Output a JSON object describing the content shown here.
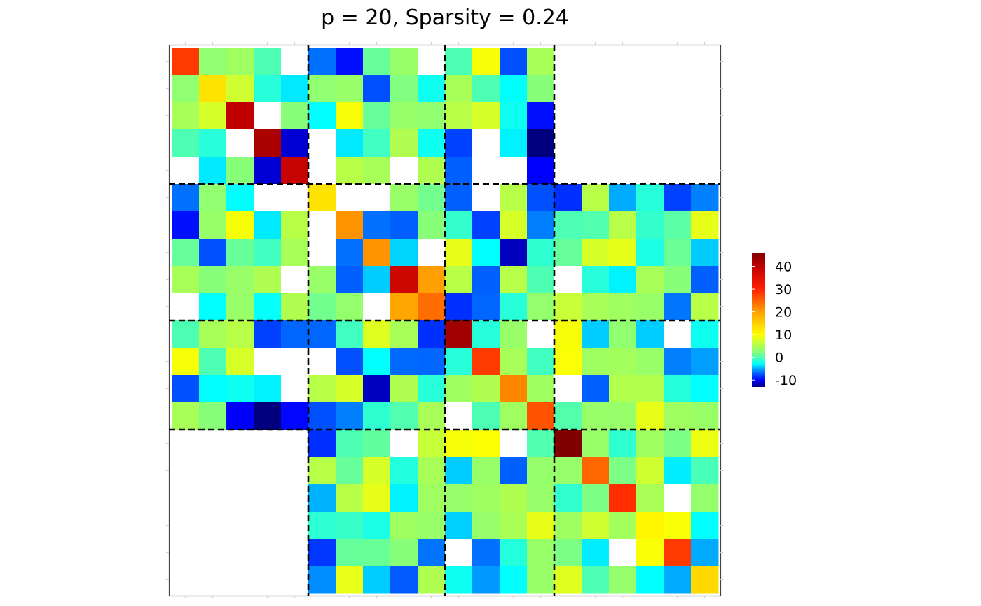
{
  "chart_data": {
    "type": "heatmap",
    "title": "p = 20, Sparsity = 0.24",
    "xlabel": "",
    "ylabel": "",
    "n_rows": 20,
    "n_cols": 20,
    "block_sizes": [
      5,
      5,
      4,
      6
    ],
    "zero_color": "#ffffff",
    "color_range": [
      -13,
      46
    ],
    "colorbar": {
      "ticks": [
        -10,
        0,
        10,
        20,
        30,
        40
      ],
      "tick_labels": [
        "-10",
        "0",
        "10",
        "20",
        "30",
        "40"
      ],
      "placement": "right"
    },
    "colormap_stops": [
      [
        -13,
        "#00007f"
      ],
      [
        -10,
        "#0000ff"
      ],
      [
        -6,
        "#0080ff"
      ],
      [
        -3,
        "#00ffff"
      ],
      [
        2,
        "#80ff80"
      ],
      [
        10,
        "#ffff00"
      ],
      [
        20,
        "#ffa000"
      ],
      [
        30,
        "#ff2000"
      ],
      [
        40,
        "#c00000"
      ],
      [
        46,
        "#800000"
      ]
    ],
    "values": [
      [
        28,
        3,
        4,
        0,
        null,
        -6.5,
        -9.5,
        1,
        3.5,
        null,
        0,
        9.5,
        -7.5,
        4.5,
        null,
        null,
        null,
        null,
        null,
        null
      ],
      [
        3,
        13,
        7,
        -1.5,
        -3.5,
        3,
        3.5,
        -7.5,
        2,
        -2.5,
        4.5,
        0,
        -3,
        2.5,
        null,
        null,
        null,
        null,
        null,
        null
      ],
      [
        4.5,
        7.5,
        40,
        null,
        2.5,
        -3,
        9.5,
        1,
        3.5,
        3,
        5.5,
        7.5,
        -2.5,
        -9.5,
        null,
        null,
        null,
        null,
        null,
        null
      ],
      [
        0,
        -1.5,
        null,
        42,
        -11,
        null,
        -3.5,
        -0.5,
        5,
        -2.5,
        -8,
        null,
        -3.3,
        -13,
        null,
        null,
        null,
        null,
        null,
        null
      ],
      [
        null,
        -3.5,
        2.5,
        -11,
        39,
        null,
        5.5,
        4.5,
        null,
        5,
        -7,
        null,
        null,
        -10,
        null,
        null,
        null,
        null,
        null,
        null
      ],
      [
        -6.5,
        3,
        -3,
        null,
        null,
        13,
        null,
        null,
        3.5,
        1.5,
        -7,
        null,
        5.5,
        -7.5,
        -8.5,
        5.5,
        -5,
        -1.5,
        -8,
        -6
      ],
      [
        -9.5,
        3.5,
        9.5,
        -3.5,
        5.5,
        null,
        21,
        -6.5,
        -7,
        2.5,
        -1,
        -8,
        7.5,
        -6,
        0,
        0.2,
        5.5,
        -1,
        0.5,
        8.5
      ],
      [
        1,
        -7.5,
        1,
        -0.5,
        4.5,
        null,
        -6.5,
        21,
        -4,
        null,
        8.5,
        -3,
        -11.5,
        -1.2,
        1,
        7.5,
        8.5,
        -2,
        1.2,
        -4.2
      ],
      [
        4.5,
        2.5,
        3.5,
        5,
        null,
        3.5,
        -7,
        -4.2,
        38,
        20,
        5.5,
        -7,
        5.5,
        0,
        null,
        -1.5,
        -3.3,
        4.5,
        2.5,
        -7
      ],
      [
        null,
        -3,
        3.5,
        -2.8,
        5,
        1.5,
        3.2,
        null,
        19.5,
        24,
        -8.5,
        -6.8,
        -1.5,
        3.2,
        6.5,
        4.5,
        4,
        3.5,
        -6.3,
        5.5
      ],
      [
        0,
        4.5,
        5.5,
        -8,
        -6.8,
        -6.8,
        -0.5,
        8,
        4.5,
        -8.5,
        43,
        -1.5,
        3.5,
        null,
        9.5,
        -4.2,
        3,
        -4.2,
        null,
        -2.5
      ],
      [
        9.5,
        0,
        7.5,
        null,
        null,
        null,
        -7.5,
        -3,
        -6.7,
        -6.8,
        -1.5,
        28,
        4.5,
        -0.5,
        9.7,
        4,
        4.2,
        3.5,
        -6,
        -5.3
      ],
      [
        -7.5,
        -3,
        -2.5,
        -3.3,
        null,
        5.5,
        7.5,
        -11.5,
        5,
        -1.5,
        4,
        5,
        22,
        4,
        null,
        -7,
        5.2,
        5.2,
        -1.6,
        -3
      ],
      [
        4.5,
        2.5,
        -10,
        -13,
        -9.8,
        -7.5,
        -6,
        -1.2,
        0.2,
        4.5,
        null,
        0,
        4,
        26,
        0.3,
        3.5,
        3.4,
        8.5,
        4,
        3.6
      ],
      [
        null,
        null,
        null,
        null,
        null,
        -8.5,
        0,
        0.8,
        null,
        6.5,
        9.5,
        9.8,
        null,
        0.2,
        46,
        3.5,
        -1.2,
        4,
        1.8,
        8.8
      ],
      [
        null,
        null,
        null,
        null,
        null,
        5.5,
        1,
        7.5,
        -1.7,
        4.5,
        -4.2,
        3.5,
        -7,
        3.3,
        3.4,
        24.5,
        1.8,
        7,
        -3.4,
        -0.2
      ],
      [
        null,
        null,
        null,
        null,
        null,
        -4.8,
        5.5,
        8.5,
        -3.3,
        4,
        3.4,
        4,
        5,
        3.4,
        -1.1,
        1.8,
        29,
        4.6,
        null,
        3.3
      ],
      [
        null,
        null,
        null,
        null,
        null,
        -1.3,
        -0.8,
        -2,
        4,
        3.5,
        -4.1,
        3.4,
        4.6,
        8.5,
        4,
        7,
        4.1,
        11,
        9.6,
        -3
      ],
      [
        null,
        null,
        null,
        null,
        null,
        -8.3,
        1,
        1.1,
        2.5,
        -6.4,
        null,
        -6.5,
        -1.6,
        3.5,
        1.8,
        -3.4,
        null,
        9.6,
        28,
        -5
      ],
      [
        null,
        null,
        null,
        null,
        null,
        -5.7,
        8.6,
        -4.2,
        -7.2,
        5,
        -2.5,
        -5.4,
        -3,
        3.5,
        8,
        0,
        3.3,
        -3,
        -5,
        14
      ]
    ]
  }
}
